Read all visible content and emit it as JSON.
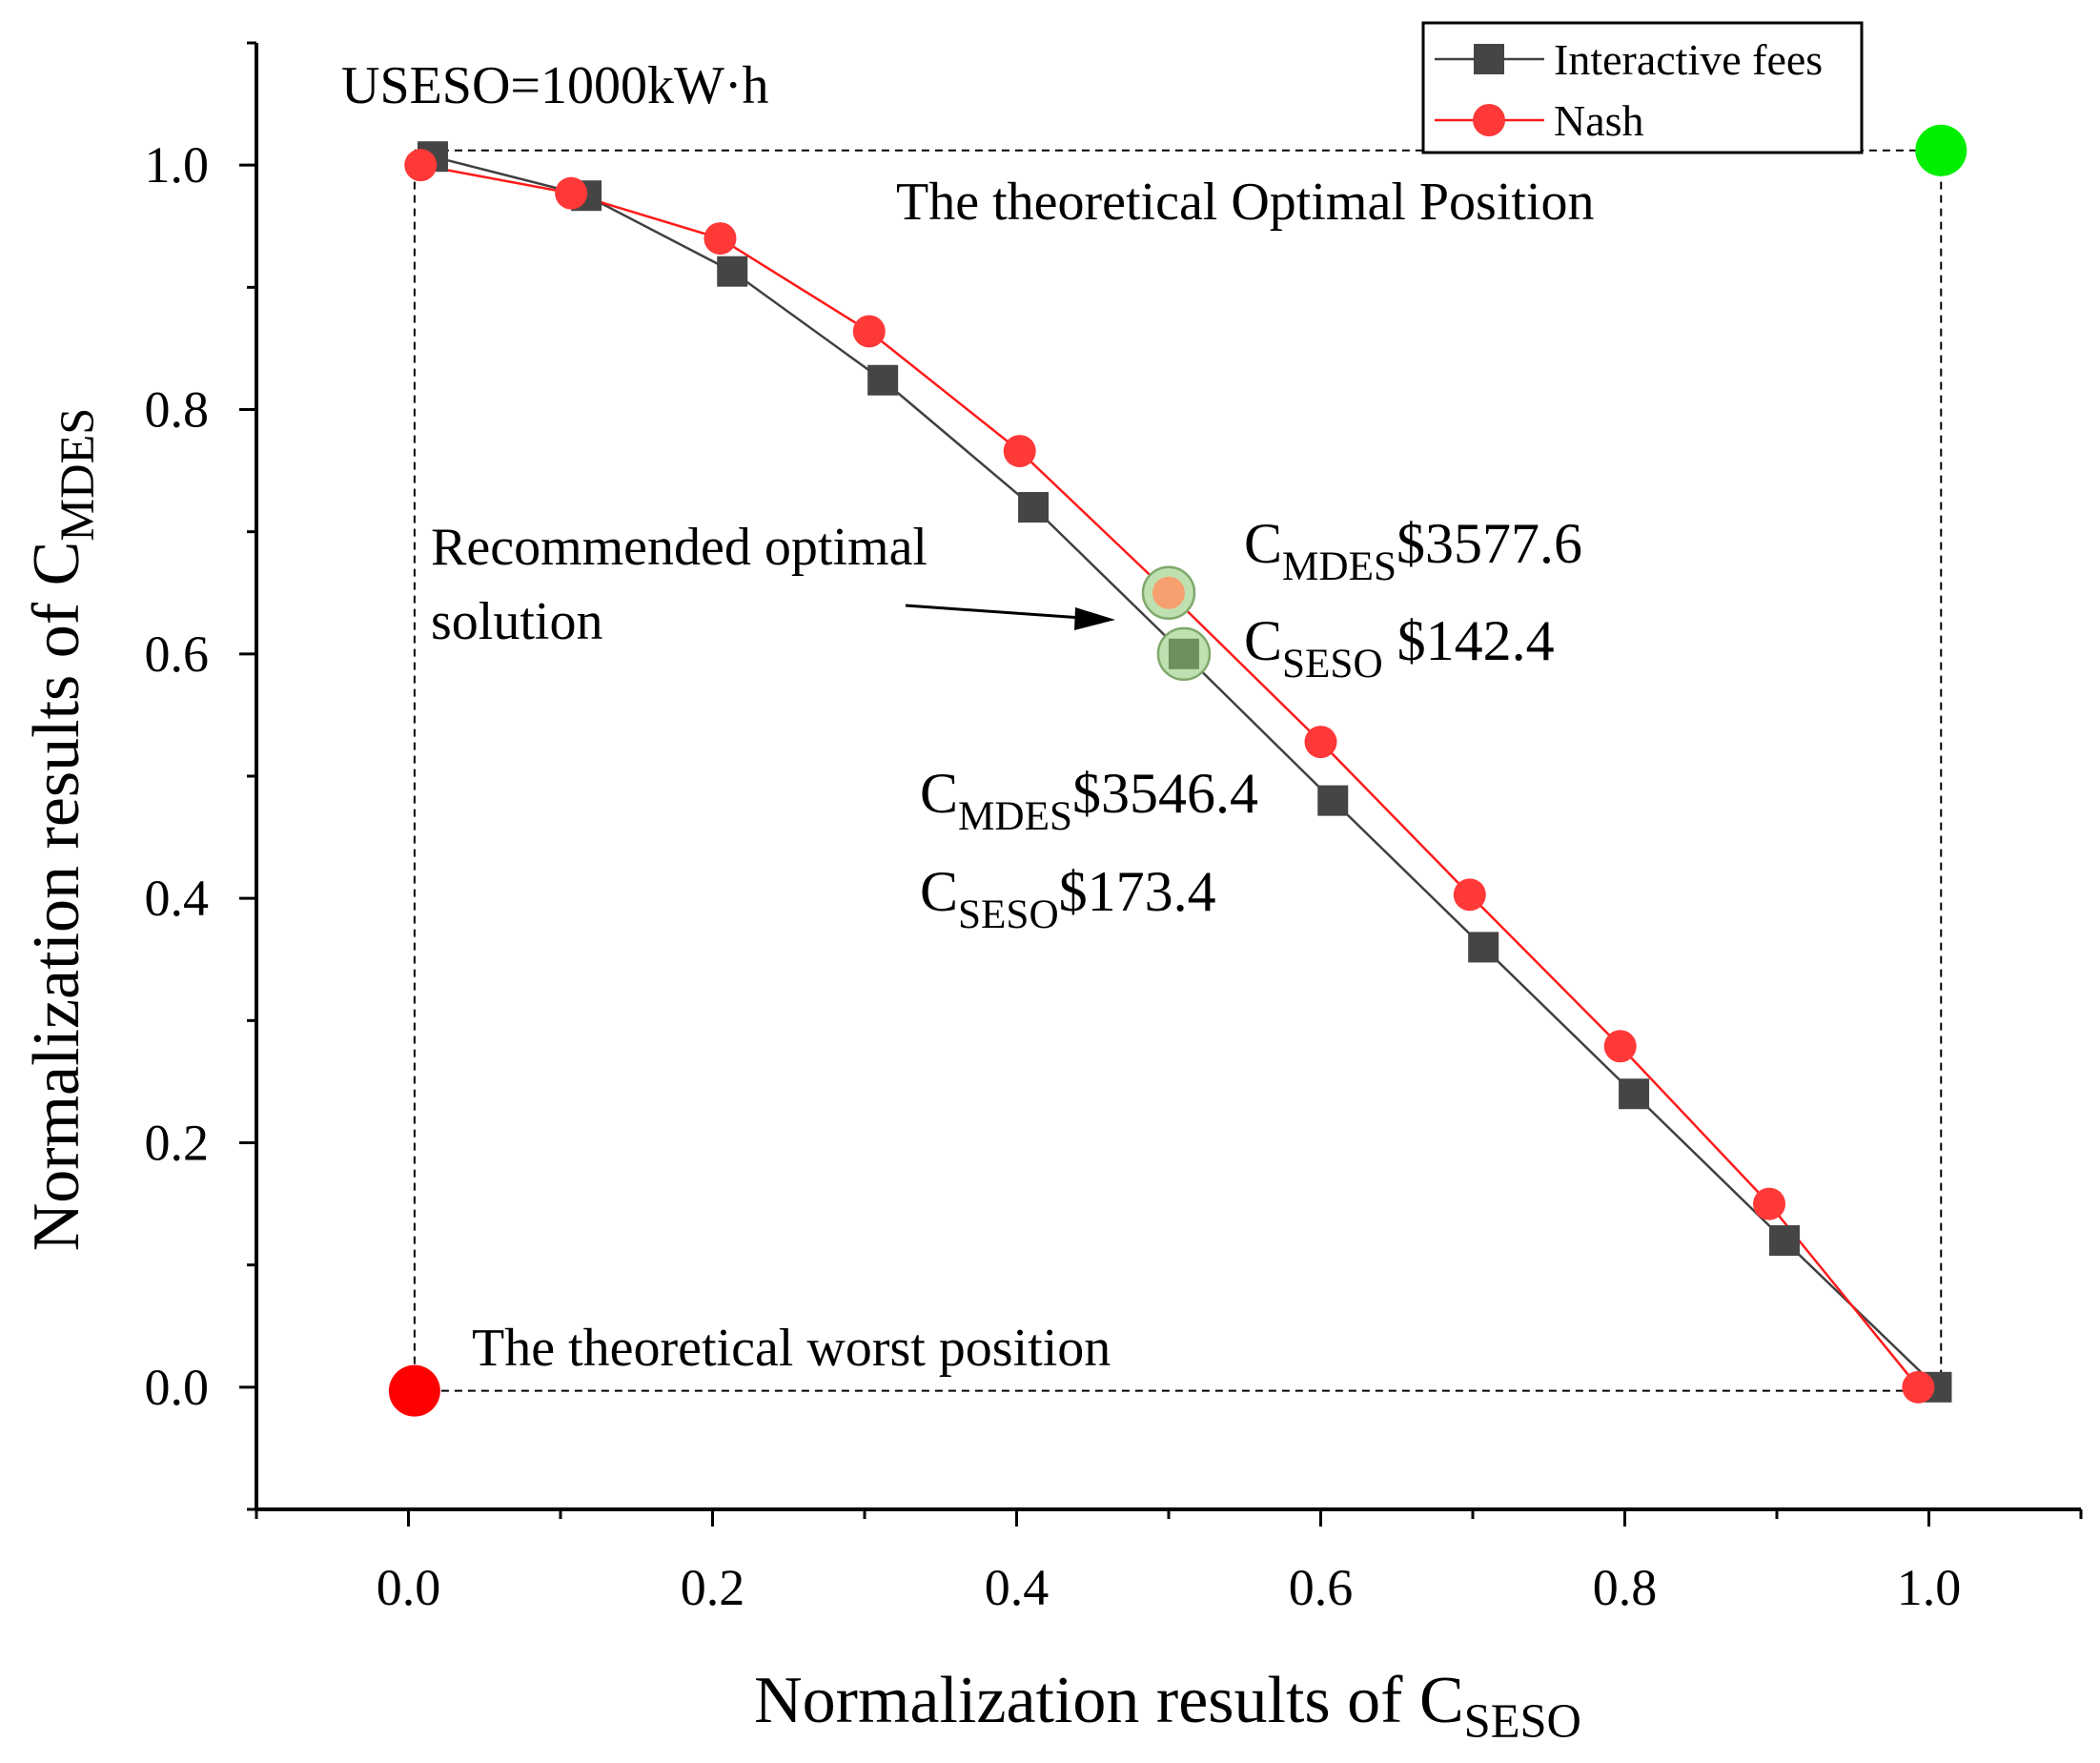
{
  "chart_data": {
    "type": "scatter",
    "x_axis": {
      "title_main": "Normalization results of C",
      "title_sub": "SESO",
      "range": [
        -0.1,
        1.1
      ],
      "tick_labels": [
        "0.0",
        "0.2",
        "0.4",
        "0.6",
        "0.8",
        "1.0"
      ],
      "tick_values": [
        0,
        0.2,
        0.4,
        0.6,
        0.8,
        1.0
      ],
      "minor_tick_values": [
        -0.1,
        0.1,
        0.3,
        0.5,
        0.7,
        0.9,
        1.1
      ]
    },
    "y_axis": {
      "title_main": "Normalization results of C",
      "title_sub": "MDES",
      "range": [
        -0.1,
        1.1
      ],
      "tick_labels": [
        "0.0",
        "0.2",
        "0.4",
        "0.6",
        "0.8",
        "1.0"
      ],
      "tick_values": [
        0,
        0.2,
        0.4,
        0.6,
        0.8,
        1.0
      ],
      "minor_tick_values": [
        -0.1,
        0.1,
        0.3,
        0.5,
        0.7,
        0.9,
        1.1
      ]
    },
    "series": [
      {
        "name": "Interactive fees",
        "color": "#454545",
        "line_color": "#404040",
        "marker": "square",
        "x": [
          0.016,
          0.117,
          0.213,
          0.312,
          0.411,
          0.51,
          0.608,
          0.707,
          0.806,
          0.905,
          1.005
        ],
        "y": [
          1.007,
          0.975,
          0.913,
          0.824,
          0.72,
          0.6,
          0.48,
          0.36,
          0.24,
          0.12,
          0.0
        ]
      },
      {
        "name": "Nash",
        "color": "#ff3838",
        "line_color": "#ff1a1a",
        "marker": "circle",
        "x": [
          0.008,
          0.107,
          0.205,
          0.303,
          0.402,
          0.5,
          0.6,
          0.698,
          0.797,
          0.895,
          0.993
        ],
        "y": [
          1.0,
          0.977,
          0.94,
          0.864,
          0.766,
          0.65,
          0.528,
          0.403,
          0.279,
          0.15,
          0.0
        ]
      }
    ],
    "highlighted_points": [
      {
        "series": "Nash",
        "x": 0.5,
        "y": 0.65,
        "fill": "#f5a06e",
        "ring": "#bfe0b0"
      },
      {
        "series": "Interactive fees",
        "x": 0.51,
        "y": 0.6,
        "fill": "#6f8f5e",
        "ring": "#bfe0b0"
      }
    ],
    "reference_points": [
      {
        "name": "optimal",
        "x": 1.008,
        "y": 1.012,
        "color": "#00ee00"
      },
      {
        "name": "worst",
        "x": 0.004,
        "y": -0.003,
        "color": "#ff0000"
      }
    ],
    "reference_box": {
      "x0": 0.004,
      "x1": 1.008,
      "y0": -0.003,
      "y1": 1.012
    },
    "annotations": {
      "useso": "USESO=1000kW·h",
      "optimal_label": "The theoretical Optimal Position",
      "worst_label": "The theoretical worst position",
      "recommended_line1": "Recommended optimal",
      "recommended_line2": "solution",
      "nash_cmdes_main": "C",
      "nash_cmdes_sub": "MDES",
      "nash_cmdes_value": "$3577.6",
      "nash_cseso_main": "C",
      "nash_cseso_sub": "SESO",
      "nash_cseso_value": " $142.4",
      "fees_cmdes_main": "C",
      "fees_cmdes_sub": "MDES",
      "fees_cmdes_value": "$3546.4",
      "fees_cseso_main": "C",
      "fees_cseso_sub": "SESO",
      "fees_cseso_value": "$173.4"
    },
    "legend": {
      "placement": "top-right",
      "entries": [
        "Interactive fees",
        "Nash"
      ]
    }
  }
}
